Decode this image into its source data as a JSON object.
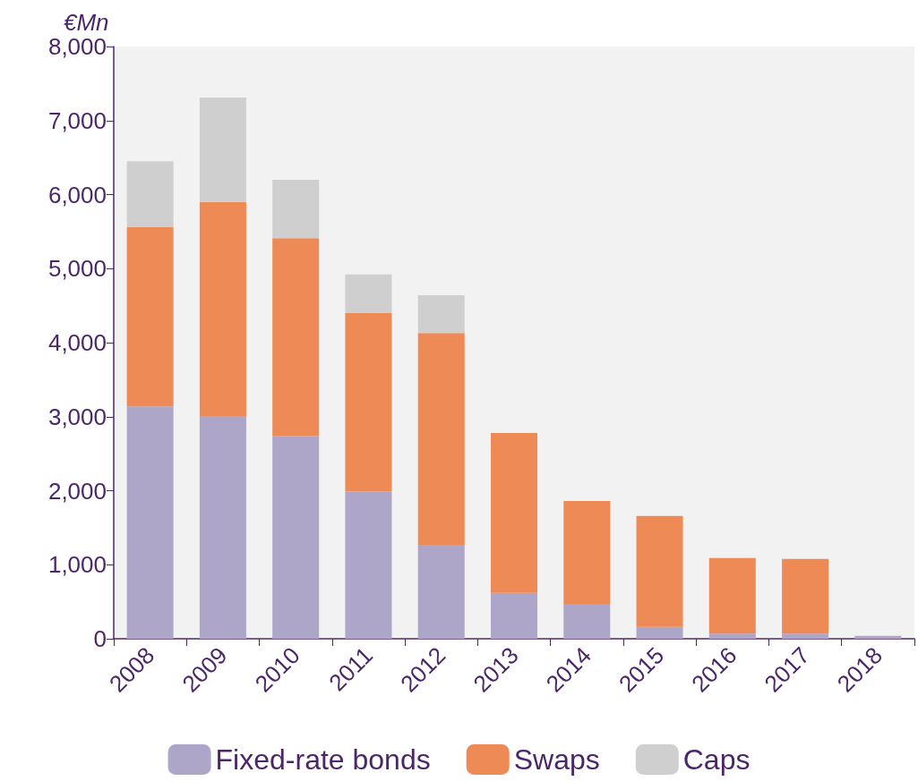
{
  "chart_data": {
    "type": "bar",
    "stacked": true,
    "ylabel": "€Mn",
    "categories": [
      "2008",
      "2009",
      "2010",
      "2011",
      "2012",
      "2013",
      "2014",
      "2015",
      "2016",
      "2017",
      "2018"
    ],
    "series": [
      {
        "name": "Fixed-rate bonds",
        "color": "#aea6c8",
        "values": [
          3140,
          3010,
          2740,
          1990,
          1270,
          620,
          470,
          160,
          70,
          70,
          40
        ]
      },
      {
        "name": "Swaps",
        "color": "#ee8a55",
        "values": [
          2420,
          2890,
          2670,
          2410,
          2860,
          2160,
          1390,
          1500,
          1020,
          1010,
          0
        ]
      },
      {
        "name": "Caps",
        "color": "#cfcfcf",
        "values": [
          890,
          1410,
          790,
          520,
          510,
          0,
          0,
          0,
          0,
          0,
          0
        ]
      }
    ],
    "ylim": [
      0,
      8000
    ],
    "yticks": [
      0,
      {
        "value": 1000,
        "label": "1,000"
      },
      {
        "value": 2000,
        "label": "2,000"
      },
      {
        "value": 3000,
        "label": "3,000"
      },
      {
        "value": 4000,
        "label": "4,000"
      },
      {
        "value": 5000,
        "label": "5,000"
      },
      {
        "value": 6000,
        "label": "6,000"
      },
      {
        "value": 7000,
        "label": "7,000"
      },
      {
        "value": 8000,
        "label": "8,000"
      }
    ],
    "grid": false,
    "legend": "bottom"
  }
}
